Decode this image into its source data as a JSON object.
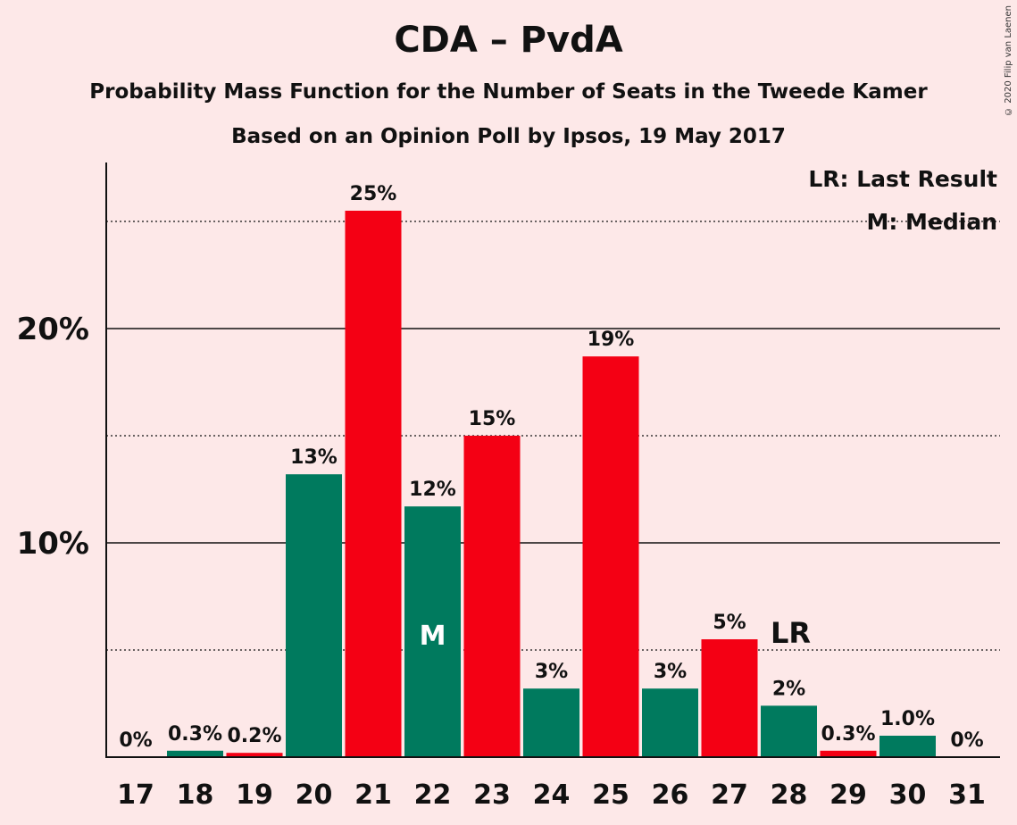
{
  "title": "CDA – PvdA",
  "subtitle": "Probability Mass Function for the Number of Seats in the Tweede Kamer",
  "subtitle2": "Based on an Opinion Poll by Ipsos, 19 May 2017",
  "copyright": "© 2020 Filip van Laenen",
  "legend": {
    "lr": "LR: Last Result",
    "m": "M: Median"
  },
  "colors": {
    "green": "#007a5e",
    "red": "#f40014",
    "background": "#fde8e8"
  },
  "chart_data": {
    "type": "bar",
    "title": "CDA – PvdA",
    "xlabel": "",
    "ylabel": "",
    "ylim": [
      0,
      27.5
    ],
    "y_ticks": [
      10,
      20
    ],
    "y_tick_labels": [
      "10%",
      "20%"
    ],
    "y_dotted_lines": [
      5,
      15,
      25
    ],
    "grid": true,
    "legend_position": "top-right",
    "categories": [
      "17",
      "18",
      "19",
      "20",
      "21",
      "22",
      "23",
      "24",
      "25",
      "26",
      "27",
      "28",
      "29",
      "30",
      "31"
    ],
    "values": [
      0,
      0.3,
      0.2,
      13.2,
      25.5,
      11.7,
      15.0,
      3.2,
      18.7,
      3.2,
      5.5,
      2.4,
      0.3,
      1.0,
      0
    ],
    "labels": [
      "0%",
      "0.3%",
      "0.2%",
      "13%",
      "25%",
      "12%",
      "15%",
      "3%",
      "19%",
      "3%",
      "5%",
      "2%",
      "0.3%",
      "1.0%",
      "0%"
    ],
    "bar_colors": [
      "green",
      "green",
      "red",
      "green",
      "red",
      "green",
      "red",
      "green",
      "red",
      "green",
      "red",
      "green",
      "red",
      "green",
      "red"
    ],
    "median": {
      "category": "22",
      "label": "M"
    },
    "last_result": {
      "category": "28",
      "label": "LR"
    }
  }
}
